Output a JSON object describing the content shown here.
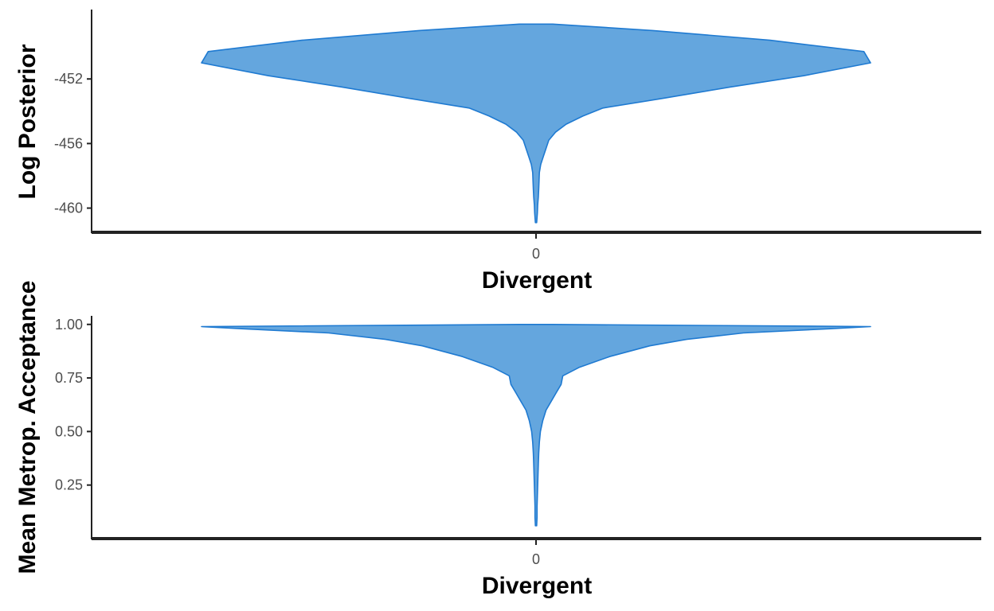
{
  "colors": {
    "fill": "#64a6de",
    "stroke": "#1f7ad1",
    "axis": "#222222",
    "tick_text": "#4d4d4d"
  },
  "chart_data": [
    {
      "type": "violin",
      "title": "",
      "xlabel": "Divergent",
      "ylabel": "Log Posterior",
      "categories": [
        "0"
      ],
      "yticks": [
        "-452",
        "-456",
        "-460"
      ],
      "ytick_values": [
        -452,
        -456,
        -460
      ],
      "ylim": [
        -461.5,
        -447.7
      ],
      "grid": false,
      "violin_profile": {
        "y": [
          -448.6,
          -449.0,
          -449.6,
          -450.3,
          -451.0,
          -451.8,
          -452.5,
          -453.2,
          -453.8,
          -454.3,
          -454.8,
          -455.3,
          -455.8,
          -456.3,
          -456.8,
          -457.3,
          -457.8,
          -458.3,
          -458.8,
          -459.3,
          -459.8,
          -460.3,
          -460.9
        ],
        "width": [
          0.05,
          0.35,
          0.7,
          0.98,
          1.0,
          0.8,
          0.58,
          0.38,
          0.2,
          0.14,
          0.09,
          0.058,
          0.038,
          0.03,
          0.022,
          0.014,
          0.01,
          0.009,
          0.008,
          0.007,
          0.005,
          0.004,
          0.002
        ]
      }
    },
    {
      "type": "violin",
      "title": "",
      "xlabel": "Divergent",
      "ylabel": "Mean Metrop. Acceptance",
      "categories": [
        "0"
      ],
      "yticks": [
        "1.00",
        "0.75",
        "0.50",
        "0.25"
      ],
      "ytick_values": [
        1.0,
        0.75,
        0.5,
        0.25
      ],
      "ylim": [
        0.0,
        1.04
      ],
      "grid": false,
      "violin_profile": {
        "y": [
          1.0,
          0.99,
          0.98,
          0.96,
          0.93,
          0.9,
          0.85,
          0.8,
          0.76,
          0.72,
          0.68,
          0.64,
          0.6,
          0.55,
          0.5,
          0.45,
          0.4,
          0.35,
          0.3,
          0.25,
          0.2,
          0.15,
          0.1,
          0.06
        ],
        "width": [
          0.05,
          1.0,
          0.88,
          0.62,
          0.45,
          0.34,
          0.22,
          0.13,
          0.08,
          0.075,
          0.06,
          0.045,
          0.03,
          0.02,
          0.013,
          0.01,
          0.008,
          0.007,
          0.006,
          0.005,
          0.004,
          0.003,
          0.003,
          0.002
        ]
      }
    }
  ]
}
